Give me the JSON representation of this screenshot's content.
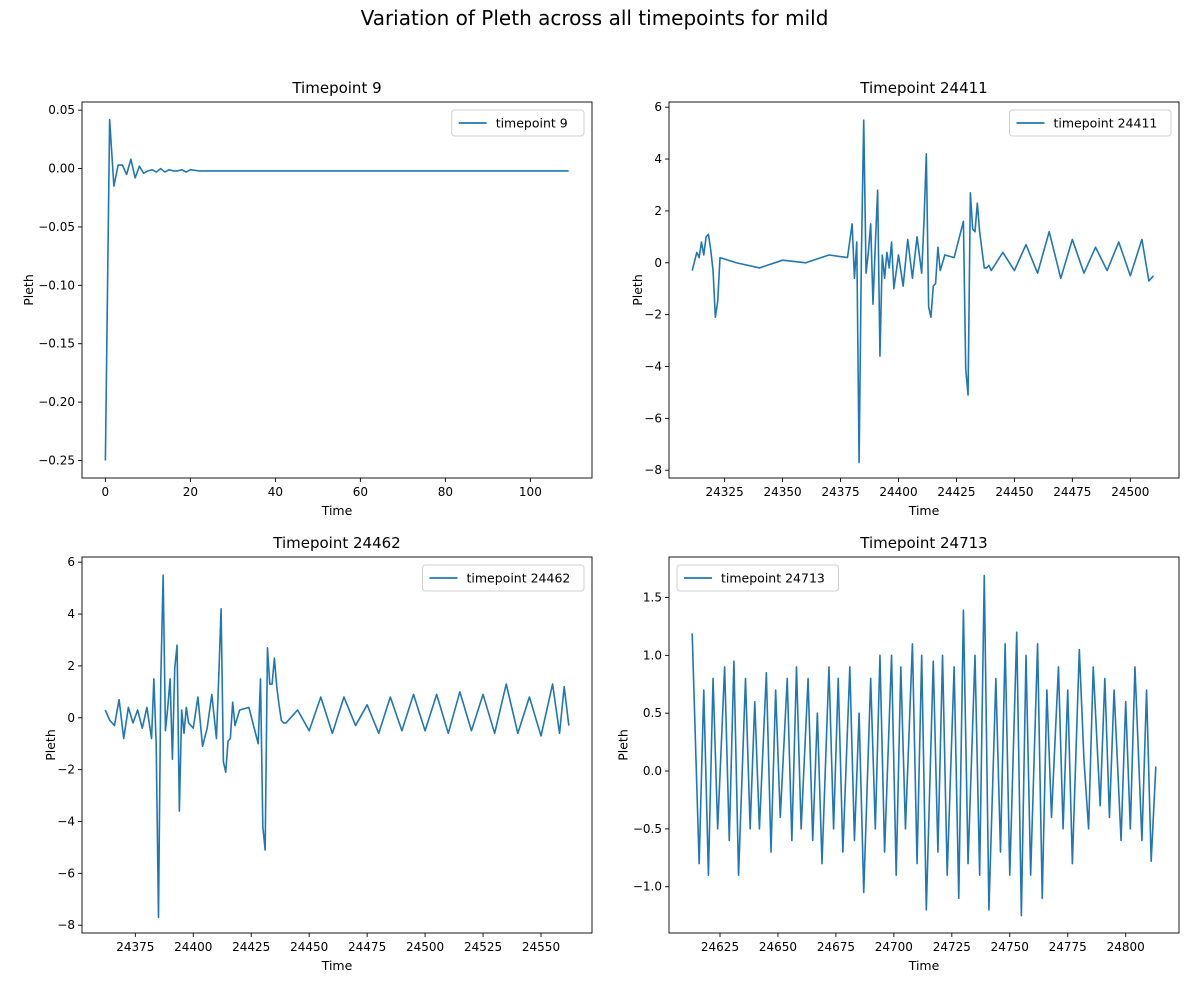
{
  "figure": {
    "title": "Variation of Pleth across all timepoints for mild"
  },
  "chart_data": [
    {
      "type": "line",
      "title": "Timepoint 9",
      "xlabel": "Time",
      "ylabel": "Pleth",
      "xlim": [
        -5.5,
        114.5
      ],
      "ylim": [
        -0.265,
        0.057
      ],
      "xticks": [
        0,
        20,
        40,
        60,
        80,
        100
      ],
      "xtick_labels": [
        "0",
        "20",
        "40",
        "60",
        "80",
        "100"
      ],
      "yticks": [
        -0.25,
        -0.2,
        -0.15,
        -0.1,
        -0.05,
        0.0,
        0.05
      ],
      "ytick_labels": [
        "−0.25",
        "−0.20",
        "−0.15",
        "−0.10",
        "−0.05",
        "0.00",
        "0.05"
      ],
      "legend_position": "upper right",
      "series": [
        {
          "name": "timepoint 9",
          "color": "#1f77b4",
          "x": [
            0,
            1,
            2,
            3,
            4,
            5,
            6,
            7,
            8,
            9,
            10,
            11,
            12,
            13,
            14,
            15,
            16,
            17,
            18,
            19,
            20,
            22,
            24,
            26,
            28,
            30,
            35,
            40,
            50,
            60,
            70,
            80,
            90,
            100,
            109
          ],
          "y": [
            -0.25,
            0.042,
            -0.015,
            0.003,
            0.003,
            -0.005,
            0.008,
            -0.008,
            0.002,
            -0.004,
            -0.002,
            -0.001,
            -0.003,
            0.0,
            -0.003,
            -0.001,
            -0.002,
            -0.002,
            -0.001,
            -0.003,
            -0.001,
            -0.002,
            -0.002,
            -0.002,
            -0.002,
            -0.002,
            -0.002,
            -0.002,
            -0.002,
            -0.002,
            -0.002,
            -0.002,
            -0.002,
            -0.002,
            -0.002
          ]
        }
      ]
    },
    {
      "type": "line",
      "title": "Timepoint 24411",
      "xlabel": "Time",
      "ylabel": "Pleth",
      "xlim": [
        24301,
        24521
      ],
      "ylim": [
        -8.3,
        6.2
      ],
      "xticks": [
        24325,
        24350,
        24375,
        24400,
        24425,
        24450,
        24475,
        24500
      ],
      "xtick_labels": [
        "24325",
        "24350",
        "24375",
        "24400",
        "24425",
        "24450",
        "24475",
        "24500"
      ],
      "yticks": [
        -8,
        -6,
        -4,
        -2,
        0,
        2,
        4,
        6
      ],
      "ytick_labels": [
        "−8",
        "−6",
        "−4",
        "−2",
        "0",
        "2",
        "4",
        "6"
      ],
      "legend_position": "upper right",
      "series": [
        {
          "name": "timepoint 24411",
          "color": "#1f77b4",
          "x": [
            24311,
            24313,
            24314,
            24315,
            24316,
            24317,
            24318,
            24319,
            24320,
            24321,
            24322,
            24323,
            24330,
            24340,
            24350,
            24360,
            24370,
            24378,
            24380,
            24381,
            24382,
            24383,
            24384,
            24385,
            24386,
            24387,
            24388,
            24389,
            24390,
            24391,
            24392,
            24393,
            24394,
            24395,
            24396,
            24397,
            24398,
            24400,
            24402,
            24404,
            24406,
            24408,
            24410,
            24411,
            24412,
            24413,
            24414,
            24415,
            24416,
            24417,
            24418,
            24420,
            24424,
            24428,
            24429,
            24430,
            24431,
            24432,
            24433,
            24434,
            24435,
            24436,
            24437,
            24438,
            24439,
            24440,
            24445,
            24450,
            24455,
            24460,
            24465,
            24470,
            24475,
            24480,
            24485,
            24490,
            24495,
            24500,
            24505,
            24508,
            24510
          ],
          "y": [
            -0.3,
            0.4,
            0.2,
            0.8,
            0.3,
            1.0,
            1.1,
            0.5,
            -0.3,
            -2.1,
            -1.5,
            0.2,
            0.0,
            -0.2,
            0.1,
            0.0,
            0.3,
            0.2,
            1.5,
            -0.6,
            0.8,
            -7.7,
            0.3,
            5.5,
            -0.4,
            0.4,
            1.5,
            -1.6,
            0.7,
            2.8,
            -3.6,
            0.3,
            -0.6,
            0.4,
            -0.2,
            0.8,
            -1.0,
            0.3,
            -0.9,
            0.9,
            -0.6,
            1.0,
            -0.4,
            1.6,
            4.2,
            -1.7,
            -2.1,
            -0.9,
            -0.8,
            0.6,
            -0.3,
            0.3,
            0.2,
            1.6,
            -4.1,
            -5.1,
            2.7,
            1.3,
            1.2,
            2.3,
            1.2,
            0.5,
            -0.2,
            -0.2,
            -0.1,
            -0.3,
            0.4,
            -0.3,
            0.7,
            -0.4,
            1.2,
            -0.6,
            0.9,
            -0.4,
            0.6,
            -0.3,
            0.8,
            -0.5,
            0.9,
            -0.7,
            -0.5
          ]
        }
      ]
    },
    {
      "type": "line",
      "title": "Timepoint 24462",
      "xlabel": "Time",
      "ylabel": "Pleth",
      "xlim": [
        24352,
        24572
      ],
      "ylim": [
        -8.3,
        6.2
      ],
      "xticks": [
        24375,
        24400,
        24425,
        24450,
        24475,
        24500,
        24525,
        24550
      ],
      "xtick_labels": [
        "24375",
        "24400",
        "24425",
        "24450",
        "24475",
        "24500",
        "24525",
        "24550"
      ],
      "yticks": [
        -8,
        -6,
        -4,
        -2,
        0,
        2,
        4,
        6
      ],
      "ytick_labels": [
        "−8",
        "−6",
        "−4",
        "−2",
        "0",
        "2",
        "4",
        "6"
      ],
      "legend_position": "upper right",
      "series": [
        {
          "name": "timepoint 24462",
          "color": "#1f77b4",
          "x": [
            24362,
            24364,
            24366,
            24368,
            24370,
            24372,
            24374,
            24376,
            24378,
            24380,
            24382,
            24383,
            24384,
            24385,
            24386,
            24387,
            24388,
            24389,
            24390,
            24391,
            24392,
            24393,
            24394,
            24395,
            24396,
            24397,
            24398,
            24400,
            24402,
            24404,
            24406,
            24408,
            24410,
            24411,
            24412,
            24413,
            24414,
            24415,
            24416,
            24417,
            24418,
            24420,
            24424,
            24428,
            24429,
            24430,
            24431,
            24432,
            24433,
            24434,
            24435,
            24436,
            24437,
            24438,
            24439,
            24440,
            24445,
            24450,
            24455,
            24460,
            24465,
            24470,
            24475,
            24480,
            24485,
            24490,
            24495,
            24500,
            24505,
            24510,
            24515,
            24520,
            24525,
            24530,
            24535,
            24540,
            24545,
            24550,
            24555,
            24558,
            24560,
            24562
          ],
          "y": [
            0.3,
            -0.1,
            -0.3,
            0.7,
            -0.8,
            0.4,
            -0.2,
            0.3,
            -0.4,
            0.4,
            -0.8,
            1.5,
            -1.0,
            -7.7,
            1.5,
            5.5,
            -0.5,
            0.4,
            1.5,
            -1.6,
            1.9,
            2.8,
            -3.6,
            0.3,
            -0.6,
            0.4,
            -0.2,
            -0.4,
            0.8,
            -1.1,
            -0.4,
            0.9,
            -0.8,
            1.6,
            4.2,
            -1.7,
            -2.1,
            -0.9,
            -0.8,
            0.6,
            -0.3,
            0.3,
            0.4,
            -1.0,
            1.5,
            -4.2,
            -5.1,
            2.7,
            1.3,
            1.3,
            2.3,
            1.2,
            0.5,
            -0.1,
            -0.2,
            -0.2,
            0.3,
            -0.5,
            0.8,
            -0.6,
            0.8,
            -0.3,
            0.5,
            -0.6,
            0.8,
            -0.5,
            0.9,
            -0.5,
            0.9,
            -0.6,
            1.0,
            -0.5,
            0.9,
            -0.6,
            1.3,
            -0.6,
            0.8,
            -0.7,
            1.3,
            -0.6,
            1.2,
            -0.3
          ]
        }
      ]
    },
    {
      "type": "line",
      "title": "Timepoint 24713",
      "xlabel": "Time",
      "ylabel": "Pleth",
      "xlim": [
        24603,
        24823
      ],
      "ylim": [
        -1.4,
        1.85
      ],
      "xticks": [
        24625,
        24650,
        24675,
        24700,
        24725,
        24750,
        24775,
        24800
      ],
      "xtick_labels": [
        "24625",
        "24650",
        "24675",
        "24700",
        "24725",
        "24750",
        "24775",
        "24800"
      ],
      "yticks": [
        -1.0,
        -0.5,
        0.0,
        0.5,
        1.0,
        1.5
      ],
      "ytick_labels": [
        "−1.0",
        "−0.5",
        "0.0",
        "0.5",
        "1.0",
        "1.5"
      ],
      "legend_position": "upper left",
      "series": [
        {
          "name": "timepoint 24713",
          "color": "#1f77b4",
          "x": [
            24613,
            24616,
            24618,
            24620,
            24622,
            24624,
            24627,
            24629,
            24631,
            24633,
            24636,
            24638,
            24640,
            24642,
            24645,
            24647,
            24649,
            24651,
            24654,
            24656,
            24658,
            24660,
            24663,
            24665,
            24667,
            24669,
            24672,
            24674,
            24676,
            24678,
            24681,
            24683,
            24685,
            24687,
            24690,
            24692,
            24694,
            24696,
            24699,
            24701,
            24703,
            24705,
            24708,
            24710,
            24712,
            24714,
            24717,
            24719,
            24721,
            24723,
            24726,
            24728,
            24730,
            24732,
            24735,
            24737,
            24739,
            24741,
            24744,
            24746,
            24748,
            24750,
            24753,
            24755,
            24757,
            24759,
            24762,
            24764,
            24766,
            24768,
            24771,
            24773,
            24775,
            24777,
            24780,
            24782,
            24784,
            24786,
            24789,
            24791,
            24793,
            24795,
            24798,
            24800,
            24802,
            24804,
            24807,
            24809,
            24811,
            24813
          ],
          "y": [
            1.19,
            -0.8,
            0.7,
            -0.9,
            0.8,
            -0.5,
            0.9,
            -0.6,
            0.95,
            -0.9,
            0.8,
            -0.5,
            0.6,
            -0.5,
            0.85,
            -0.7,
            0.7,
            -0.4,
            0.8,
            -0.6,
            0.9,
            -0.5,
            0.8,
            -0.6,
            0.5,
            -0.8,
            0.9,
            -0.5,
            0.8,
            -0.7,
            0.9,
            -0.6,
            0.5,
            -1.05,
            0.8,
            -0.5,
            1.0,
            -0.7,
            1.0,
            -0.9,
            0.9,
            -0.5,
            1.1,
            -0.8,
            1.0,
            -1.2,
            0.95,
            -0.7,
            1.0,
            -0.9,
            0.9,
            -1.1,
            1.39,
            -0.8,
            1.0,
            -0.9,
            1.69,
            -1.2,
            0.8,
            -0.7,
            1.1,
            -0.9,
            1.2,
            -1.25,
            1.0,
            -0.9,
            1.1,
            -1.1,
            0.7,
            -0.4,
            0.9,
            -0.5,
            0.7,
            -0.8,
            1.05,
            0.1,
            -0.5,
            0.9,
            -0.3,
            0.8,
            -0.4,
            0.7,
            -0.6,
            0.6,
            -0.5,
            0.9,
            -0.6,
            0.7,
            -0.78,
            0.04
          ]
        }
      ]
    }
  ]
}
